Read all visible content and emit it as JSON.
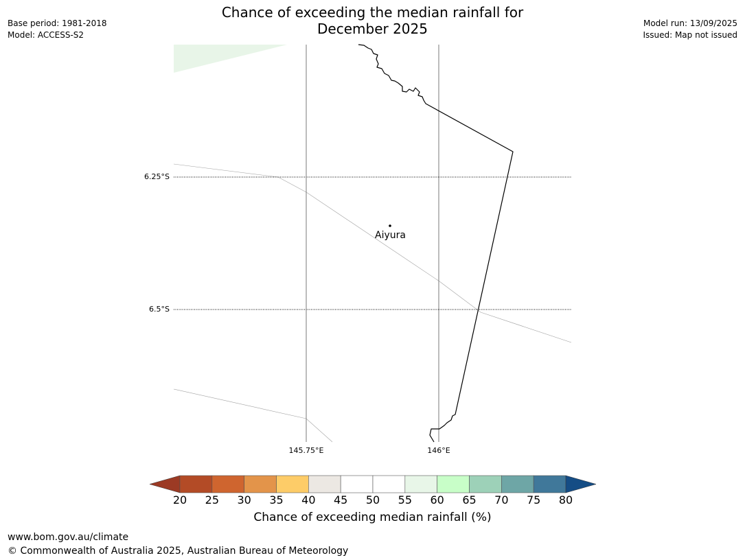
{
  "title_line1": "Chance of exceeding the median rainfall for",
  "title_line2": "December 2025",
  "meta_left": {
    "base_period": "Base period: 1981-2018",
    "model": "Model: ACCESS-S2"
  },
  "meta_right": {
    "model_run": "Model run: 13/09/2025",
    "issued": "Issued: Map not issued"
  },
  "map": {
    "lat_ticks": [
      "6.25°S",
      "6.5°S"
    ],
    "lon_ticks": [
      "145.75°E",
      "146°E"
    ],
    "place": "Aiyura",
    "background_color": "#ffffff",
    "shaded_region_color": "#e8f5e8"
  },
  "colorbar": {
    "label": "Chance of exceeding median rainfall (%)",
    "ticks": [
      "20",
      "25",
      "30",
      "35",
      "40",
      "45",
      "50",
      "55",
      "60",
      "65",
      "70",
      "75",
      "80"
    ],
    "under_color": "#9c3a24",
    "over_color": "#154d85",
    "colors": [
      "#b34b26",
      "#cf652f",
      "#e3944a",
      "#fdcc68",
      "#ece8e3",
      "#ffffff",
      "#ffffff",
      "#e8f6e8",
      "#c8fec8",
      "#9dd1b8",
      "#6ea6a6",
      "#40789a"
    ]
  },
  "footer": {
    "url": "www.bom.gov.au/climate",
    "copyright": "© Commonwealth of Australia 2025, Australian Bureau of Meteorology"
  }
}
